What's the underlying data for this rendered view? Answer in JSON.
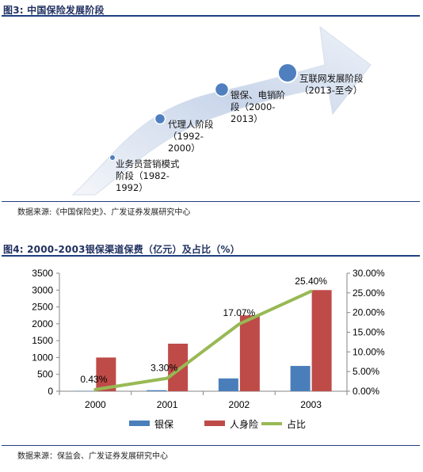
{
  "figure3": {
    "title": "图3:  中国保险发展阶段",
    "source": "数据来源:《中国保险史》、广发证券发展研究中心",
    "stages": [
      {
        "line1": "业务员营销模式",
        "line2": "阶段（1982-",
        "line3": "1992）"
      },
      {
        "line1": "代理人阶段",
        "line2": "（1992-",
        "line3": "2000）"
      },
      {
        "line1": "银保、电销阶",
        "line2": "段（2000-",
        "line3": "2013）"
      },
      {
        "line1": "互联网发展阶段",
        "line2": "（2013-至今）",
        "line3": ""
      }
    ]
  },
  "figure4": {
    "title": "图4:  2000-2003银保渠道保费（亿元）及占比（%）",
    "source": "数据来源：保监会、广发证券发展研究中心"
  },
  "colors": {
    "bancassurance": "#4a7ebb",
    "life": "#be4b48",
    "share": "#98b954",
    "arrow_light": "#dfe6f2",
    "arrow_dark": "#4f7fbf",
    "title_rule": "#1f3f7f"
  },
  "chart_data": {
    "type": "bar",
    "categories": [
      "2000",
      "2001",
      "2002",
      "2003"
    ],
    "series": [
      {
        "name": "银保",
        "type": "bar",
        "axis": "left",
        "values": [
          8,
          30,
          380,
          750
        ]
      },
      {
        "name": "人身险",
        "type": "bar",
        "axis": "left",
        "values": [
          1000,
          1410,
          2250,
          3000
        ]
      },
      {
        "name": "占比",
        "type": "line",
        "axis": "right",
        "values": [
          0.43,
          3.3,
          17.07,
          25.4
        ],
        "labels": [
          "0.43%",
          "3.30%",
          "17.07%",
          "25.40%"
        ]
      }
    ],
    "ylim": [
      0,
      3500
    ],
    "yticks": [
      "0",
      "500",
      "1000",
      "1500",
      "2000",
      "2500",
      "3000",
      "3500"
    ],
    "y2lim": [
      0,
      30
    ],
    "y2ticks": [
      "0.00%",
      "5.00%",
      "10.00%",
      "15.00%",
      "20.00%",
      "25.00%",
      "30.00%"
    ],
    "legend": [
      "银保",
      "人身险",
      "占比"
    ],
    "legend_position": "bottom",
    "grid": false
  }
}
